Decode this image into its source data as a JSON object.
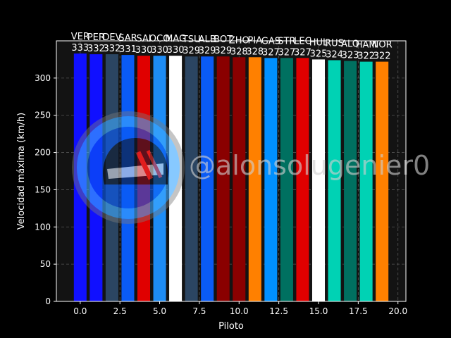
{
  "chart_data": {
    "type": "bar",
    "title": "",
    "xlabel": "Piloto",
    "ylabel": "Velocidad máxima (km/h)",
    "xlim": [
      -1.5,
      20.5
    ],
    "ylim": [
      0,
      350
    ],
    "x_ticks": [
      0.0,
      2.5,
      5.0,
      7.5,
      10.0,
      12.5,
      15.0,
      17.5,
      20.0
    ],
    "x_tick_labels": [
      "0.0",
      "2.5",
      "5.0",
      "7.5",
      "10.0",
      "12.5",
      "15.0",
      "17.5",
      "20.0"
    ],
    "y_ticks": [
      0,
      50,
      100,
      150,
      200,
      250,
      300
    ],
    "y_tick_labels": [
      "0",
      "50",
      "100",
      "150",
      "200",
      "250",
      "300"
    ],
    "grid": true,
    "grid_style": "dashed",
    "legend": false,
    "background": "#000000",
    "plot_background": "#131313",
    "categories": [
      "VER",
      "PER",
      "DEV",
      "SAR",
      "SAI",
      "OCO",
      "MAG",
      "TSU",
      "ALB",
      "BOT",
      "ZHO",
      "PIA",
      "GAS",
      "STR",
      "LEC",
      "HUL",
      "RUS",
      "ALO",
      "HAM",
      "NOR"
    ],
    "values": [
      333,
      332,
      332,
      331,
      330,
      330,
      330,
      329,
      329,
      329,
      328,
      328,
      327,
      327,
      327,
      325,
      324,
      323,
      322,
      322
    ],
    "data_labels": [
      "333",
      "332",
      "332",
      "331",
      "330",
      "330",
      "330",
      "329",
      "329",
      "329",
      "328",
      "328",
      "327",
      "327",
      "327",
      "325",
      "324",
      "323",
      "322",
      "322"
    ],
    "colors": [
      "#1010ff",
      "#1010ff",
      "#2b4562",
      "#0a5bf5",
      "#e00000",
      "#1d8cf5",
      "#ffffff",
      "#2b4562",
      "#0a5bf5",
      "#8a0000",
      "#8a0000",
      "#ff8000",
      "#0090ff",
      "#007060",
      "#e00000",
      "#ffffff",
      "#00d2b4",
      "#007060",
      "#00d2b4",
      "#ff8000"
    ]
  },
  "watermark": {
    "text": "@alonsolugenier0",
    "icon": "helmet-logo-icon"
  }
}
